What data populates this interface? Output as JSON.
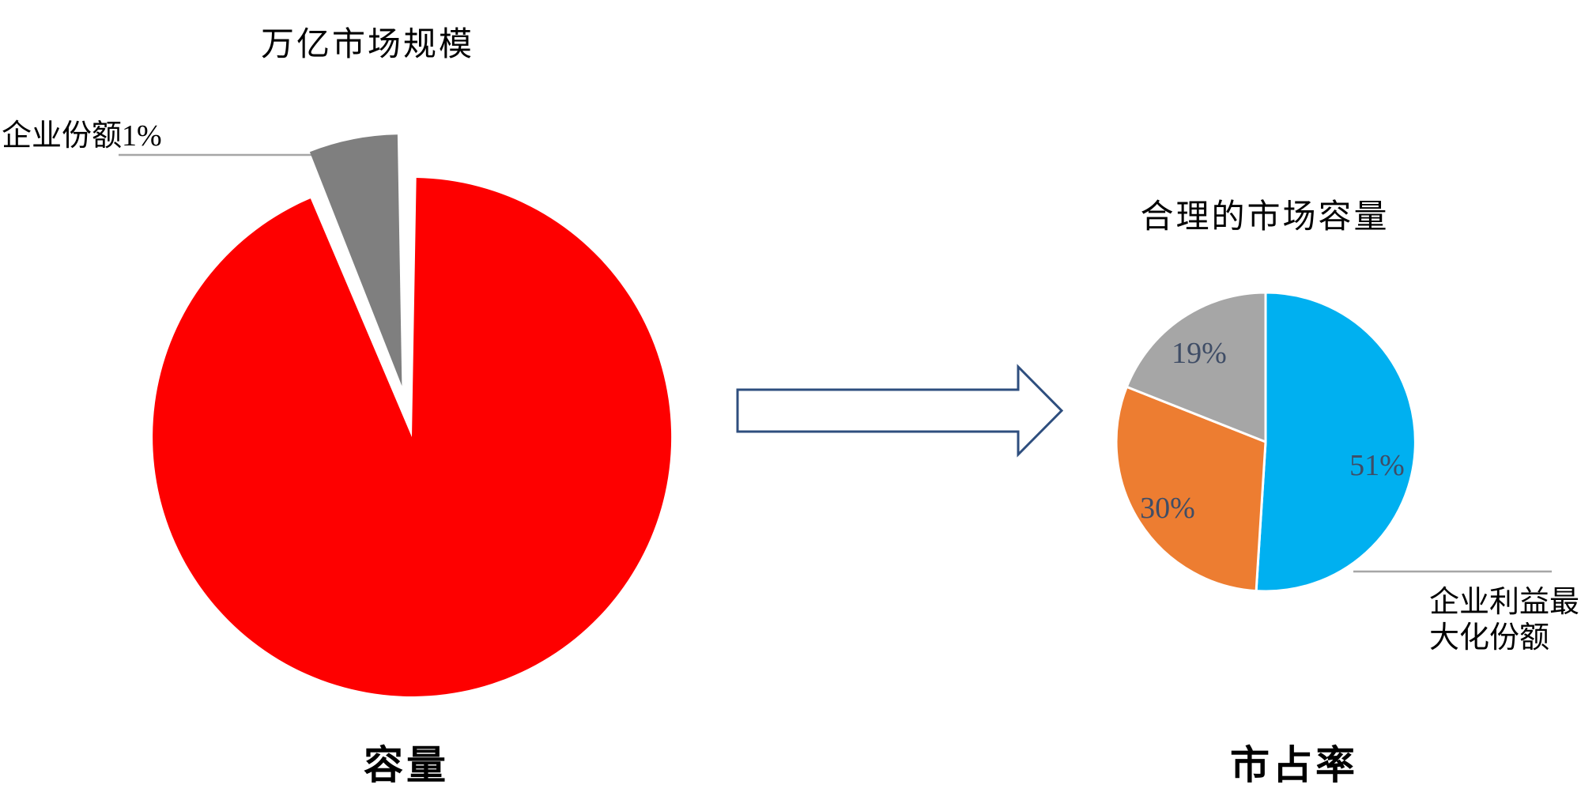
{
  "colors": {
    "red_slice": "#FE0000",
    "exploded_gray_slice": "#7F7F7F",
    "blue_slice": "#00B0F0",
    "orange_slice": "#ED7D31",
    "gray_slice": "#A6A6A6",
    "arrow_outline": "#2E4E7E",
    "arrow_fill": "#FFFFFF",
    "leader_line": "#A6A6A6",
    "percent_label_text": "#3F4D66",
    "body_text": "#000000"
  },
  "chart_data": [
    {
      "type": "pie",
      "title": "万亿市场规模",
      "caption": "容量",
      "legend_position": "none",
      "slices": [
        {
          "label": "",
          "value_pct": 99,
          "color": "#FE0000",
          "exploded": false
        },
        {
          "label": "企业份额1%",
          "value_pct": 1,
          "color": "#7F7F7F",
          "exploded": true
        }
      ]
    },
    {
      "type": "pie",
      "title": "合理的市场容量",
      "caption": "市占率",
      "legend_position": "none",
      "start_angle_deg": 0,
      "direction": "clockwise",
      "slices": [
        {
          "label": "51%",
          "value_pct": 51,
          "color": "#00B0F0",
          "callout": "企业利益最大化份额"
        },
        {
          "label": "30%",
          "value_pct": 30,
          "color": "#ED7D31"
        },
        {
          "label": "19%",
          "value_pct": 19,
          "color": "#A6A6A6"
        }
      ]
    }
  ]
}
